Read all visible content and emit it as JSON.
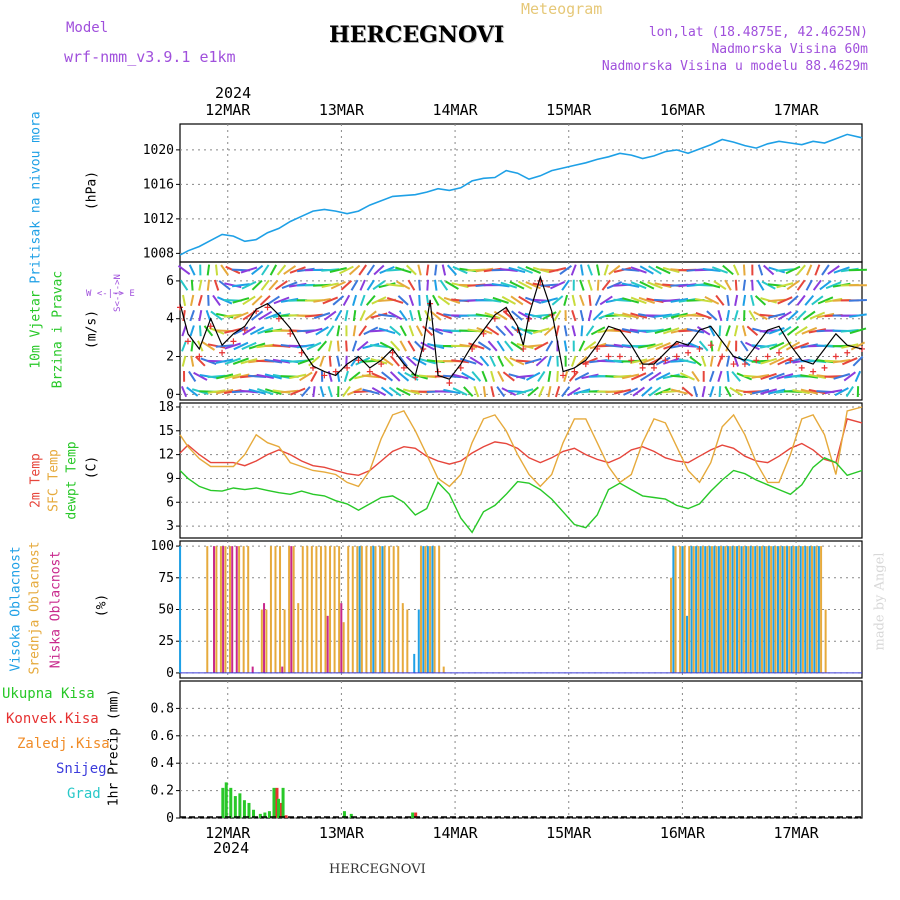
{
  "header": {
    "model_label": "Model",
    "model_name": "wrf-nmm_v3.9.1 e1km",
    "station": "HERCEGNOVI",
    "product": "Meteogram",
    "coords": "lon,lat (18.4875E, 42.4625N)",
    "altitude": "Nadmorska Visina 60m",
    "model_altitude": "Nadmorska Visina u modelu 88.4629m"
  },
  "footer": {
    "station": "HERCEGNOVI",
    "credit": "made by Angel"
  },
  "colors": {
    "pressure": "#1ea0e6",
    "wind_speed": "#000000",
    "gust": "#e63232",
    "t2m": "#e6463c",
    "sfc": "#e6aa3c",
    "dewpt": "#28c828",
    "cloud_high": "#1ea0e6",
    "cloud_mid": "#e6aa3c",
    "cloud_low": "#c8288c",
    "precip_total": "#28c828",
    "precip_conv": "#e63232",
    "precip_frz": "#f08c28",
    "snow": "#3c3cdc",
    "graupel": "#28c8c8",
    "grid": "#888888"
  },
  "chart_data": [
    {
      "type": "line",
      "id": "pressure",
      "ylabel_rot": "Pritisak na nivou mora",
      "unit": "(hPa)",
      "ylim": [
        1007,
        1023
      ],
      "yticks": [
        1008,
        1012,
        1016,
        1020
      ],
      "x_start_day": 11.58,
      "x_end_day": 17.58,
      "x_tick_days": [
        12,
        13,
        14,
        15,
        16,
        17
      ],
      "x_tick_labels": [
        "12MAR",
        "13MAR",
        "14MAR",
        "15MAR",
        "16MAR",
        "17MAR"
      ],
      "year_label": "2024",
      "grid": true,
      "x": [
        11.58,
        11.65,
        11.75,
        11.85,
        11.95,
        12.05,
        12.15,
        12.25,
        12.35,
        12.45,
        12.55,
        12.65,
        12.75,
        12.85,
        12.95,
        13.05,
        13.15,
        13.25,
        13.35,
        13.45,
        13.55,
        13.65,
        13.75,
        13.85,
        13.95,
        14.05,
        14.15,
        14.25,
        14.35,
        14.45,
        14.55,
        14.65,
        14.75,
        14.85,
        14.95,
        15.05,
        15.15,
        15.25,
        15.35,
        15.45,
        15.55,
        15.65,
        15.75,
        15.85,
        15.95,
        16.05,
        16.15,
        16.25,
        16.35,
        16.45,
        16.55,
        16.65,
        16.75,
        16.85,
        16.95,
        17.05,
        17.15,
        17.25,
        17.35,
        17.45,
        17.58
      ],
      "values": [
        1007.8,
        1008.3,
        1008.8,
        1009.5,
        1010.2,
        1010.0,
        1009.4,
        1009.6,
        1010.4,
        1010.9,
        1011.7,
        1012.3,
        1012.9,
        1013.1,
        1012.9,
        1012.6,
        1012.9,
        1013.6,
        1014.1,
        1014.6,
        1014.7,
        1014.8,
        1015.1,
        1015.5,
        1015.3,
        1015.6,
        1016.4,
        1016.7,
        1016.8,
        1017.6,
        1017.3,
        1016.6,
        1017.0,
        1017.6,
        1017.9,
        1018.2,
        1018.5,
        1018.9,
        1019.2,
        1019.6,
        1019.4,
        1019.0,
        1019.3,
        1019.8,
        1020.0,
        1019.6,
        1020.1,
        1020.6,
        1021.2,
        1020.9,
        1020.5,
        1020.2,
        1020.7,
        1021.0,
        1020.8,
        1020.6,
        1021.0,
        1020.8,
        1021.3,
        1021.8,
        1021.4
      ]
    },
    {
      "type": "line",
      "id": "wind",
      "ylabel_rot": "10m Vjetar",
      "ylabel_rot2": "Brzina i Pravac",
      "unit": "(m/s)",
      "compass": "W <-|-> E",
      "compass_ns": "S<-|->N",
      "ylim": [
        -0.3,
        7.0
      ],
      "yticks": [
        0,
        2,
        4,
        6
      ],
      "grid": true,
      "x": [
        11.58,
        11.65,
        11.75,
        11.85,
        11.95,
        12.05,
        12.15,
        12.25,
        12.35,
        12.45,
        12.55,
        12.65,
        12.75,
        12.85,
        12.95,
        13.05,
        13.15,
        13.25,
        13.35,
        13.45,
        13.55,
        13.65,
        13.72,
        13.78,
        13.85,
        13.95,
        14.05,
        14.15,
        14.25,
        14.35,
        14.45,
        14.55,
        14.6,
        14.65,
        14.75,
        14.85,
        14.95,
        15.05,
        15.15,
        15.25,
        15.35,
        15.45,
        15.55,
        15.65,
        15.75,
        15.85,
        15.95,
        16.05,
        16.15,
        16.25,
        16.35,
        16.45,
        16.55,
        16.65,
        16.75,
        16.85,
        16.95,
        17.05,
        17.15,
        17.25,
        17.35,
        17.45,
        17.58
      ],
      "values": [
        4.8,
        3.2,
        2.4,
        4.0,
        2.6,
        3.2,
        3.6,
        4.5,
        4.8,
        4.2,
        3.5,
        2.4,
        1.5,
        1.2,
        1.0,
        1.6,
        2.0,
        1.4,
        1.8,
        2.4,
        1.6,
        1.0,
        2.6,
        5.0,
        1.0,
        0.8,
        1.6,
        2.6,
        3.4,
        4.2,
        4.6,
        3.6,
        2.6,
        4.2,
        6.2,
        4.4,
        1.2,
        1.4,
        1.8,
        2.6,
        3.6,
        3.4,
        2.6,
        1.6,
        1.6,
        2.2,
        2.8,
        2.6,
        3.4,
        3.6,
        2.8,
        2.0,
        1.8,
        2.6,
        3.4,
        3.6,
        2.6,
        1.8,
        1.6,
        2.4,
        3.2,
        2.6,
        2.4
      ],
      "gust_values": [
        4.6,
        2.8,
        2.0,
        3.6,
        2.2,
        2.8,
        3.4,
        4.4,
        4.6,
        4.0,
        3.2,
        2.2,
        1.4,
        1.0,
        1.2,
        1.4,
        1.8,
        1.2,
        1.6,
        2.2,
        1.4,
        0.9,
        2.4,
        4.8,
        1.2,
        0.6,
        1.4,
        2.4,
        3.2,
        4.0,
        4.4,
        3.4,
        2.4,
        4.0,
        6.0,
        4.2,
        1.0,
        1.2,
        1.6,
        2.4,
        2.0,
        2.0,
        1.8,
        1.4,
        1.4,
        1.8,
        2.0,
        2.2,
        2.4,
        2.6,
        2.0,
        1.6,
        1.6,
        1.8,
        2.0,
        2.2,
        1.8,
        1.4,
        1.2,
        1.4,
        2.0,
        2.2,
        2.4
      ]
    },
    {
      "type": "line",
      "id": "temperature",
      "ylabel_rot": "2m Temp",
      "ylabel_rot2": "SFC Temp",
      "ylabel_rot3": "dewpt Temp",
      "unit": "(C)",
      "ylim": [
        1.5,
        18.5
      ],
      "yticks": [
        3,
        6,
        9,
        12,
        15,
        18
      ],
      "grid": true,
      "x": [
        11.58,
        11.65,
        11.75,
        11.85,
        11.95,
        12.05,
        12.15,
        12.25,
        12.35,
        12.45,
        12.55,
        12.65,
        12.75,
        12.85,
        12.95,
        13.05,
        13.15,
        13.25,
        13.35,
        13.45,
        13.55,
        13.65,
        13.75,
        13.85,
        13.95,
        14.05,
        14.15,
        14.25,
        14.35,
        14.45,
        14.55,
        14.65,
        14.75,
        14.85,
        14.95,
        15.05,
        15.15,
        15.25,
        15.35,
        15.45,
        15.55,
        15.65,
        15.75,
        15.85,
        15.95,
        16.05,
        16.15,
        16.25,
        16.35,
        16.45,
        16.55,
        16.65,
        16.75,
        16.85,
        16.95,
        17.05,
        17.15,
        17.25,
        17.35,
        17.45,
        17.58
      ],
      "series": [
        {
          "name": "2m Temp",
          "values": [
            12.2,
            13.2,
            12.0,
            11.0,
            11.0,
            11.0,
            10.6,
            11.2,
            12.0,
            12.6,
            12.0,
            11.2,
            10.6,
            10.4,
            10.0,
            9.6,
            9.4,
            10.0,
            11.2,
            12.4,
            13.0,
            12.8,
            11.8,
            11.2,
            10.8,
            11.2,
            12.2,
            13.0,
            13.6,
            13.4,
            12.8,
            11.6,
            11.0,
            11.6,
            12.4,
            12.8,
            12.0,
            11.4,
            11.0,
            11.6,
            12.6,
            13.0,
            12.4,
            11.6,
            11.2,
            11.0,
            11.8,
            12.6,
            13.2,
            12.8,
            11.8,
            11.2,
            11.0,
            11.8,
            12.8,
            13.4,
            12.6,
            11.4,
            11.0,
            16.5,
            16.0
          ]
        },
        {
          "name": "SFC Temp",
          "values": [
            14.5,
            13.0,
            11.5,
            10.5,
            10.5,
            10.5,
            12.0,
            14.5,
            13.5,
            13.0,
            11.0,
            10.5,
            10.0,
            9.8,
            9.5,
            8.5,
            8.0,
            10.0,
            14.0,
            17.0,
            17.5,
            15.0,
            12.0,
            9.0,
            8.0,
            9.5,
            13.5,
            16.5,
            17.0,
            15.0,
            12.0,
            9.5,
            8.0,
            9.5,
            13.5,
            16.5,
            16.5,
            13.5,
            10.5,
            8.5,
            9.5,
            13.5,
            16.5,
            16.0,
            13.0,
            10.0,
            8.5,
            11.0,
            15.5,
            17.0,
            14.5,
            11.0,
            8.5,
            8.5,
            12.0,
            16.5,
            17.0,
            14.5,
            9.5,
            17.5,
            18.0
          ]
        },
        {
          "name": "dewpt Temp",
          "values": [
            10.0,
            9.0,
            8.0,
            7.5,
            7.4,
            7.8,
            7.6,
            7.8,
            7.5,
            7.2,
            7.0,
            7.4,
            7.0,
            6.8,
            6.2,
            5.8,
            5.0,
            5.8,
            6.6,
            6.8,
            6.0,
            4.4,
            5.2,
            8.5,
            7.0,
            4.0,
            2.2,
            4.8,
            5.6,
            7.0,
            8.6,
            8.4,
            7.6,
            6.4,
            4.8,
            3.2,
            2.8,
            4.4,
            7.6,
            8.4,
            7.6,
            6.8,
            6.6,
            6.4,
            5.6,
            5.2,
            5.8,
            7.4,
            8.8,
            10.0,
            9.6,
            8.8,
            8.2,
            7.6,
            7.0,
            8.2,
            10.4,
            11.6,
            11.0,
            9.4,
            10.0
          ]
        }
      ]
    },
    {
      "type": "bar",
      "id": "cloud",
      "ylabel_rot": "Visoka Oblacnost",
      "ylabel_rot2": "Srednja Oblacnost",
      "ylabel_rot3": "Niska Oblacnost",
      "unit": "(%)",
      "ylim": [
        -4,
        104
      ],
      "yticks": [
        0,
        25,
        50,
        75,
        100
      ],
      "grid": true,
      "x": [
        11.6,
        11.62,
        11.82,
        11.86,
        11.9,
        11.94,
        11.98,
        12.02,
        12.06,
        12.1,
        12.14,
        12.18,
        12.2,
        12.3,
        12.34,
        12.38,
        12.42,
        12.46,
        12.5,
        12.54,
        12.58,
        12.62,
        12.66,
        12.7,
        12.74,
        12.78,
        12.82,
        12.86,
        12.9,
        12.94,
        12.98,
        13.02,
        13.06,
        13.1,
        13.14,
        13.18,
        13.22,
        13.26,
        13.3,
        13.34,
        13.38,
        13.42,
        13.46,
        13.5,
        13.54,
        13.58,
        13.62,
        13.66,
        13.7,
        13.74,
        13.78,
        13.82,
        13.86,
        13.9,
        15.9,
        15.94,
        15.98,
        16.02,
        16.06,
        16.1,
        16.14,
        16.18,
        16.22,
        16.26,
        16.3,
        16.34,
        16.38,
        16.42,
        16.46,
        16.5,
        16.54,
        16.58,
        16.62,
        16.66,
        16.7,
        16.74,
        16.78,
        16.82,
        16.86,
        16.9,
        16.94,
        16.98,
        17.02,
        17.06,
        17.1,
        17.14,
        17.18,
        17.22,
        17.26
      ],
      "series": [
        {
          "name": "Visoka Oblacnost",
          "values": [
            100,
            0,
            0,
            0,
            0,
            0,
            0,
            0,
            0,
            0,
            0,
            0,
            0,
            0,
            0,
            0,
            0,
            0,
            0,
            0,
            0,
            0,
            0,
            0,
            0,
            0,
            0,
            0,
            0,
            0,
            0,
            0,
            0,
            0,
            0,
            100,
            0,
            0,
            100,
            0,
            100,
            0,
            0,
            0,
            0,
            0,
            0,
            15,
            50,
            100,
            100,
            100,
            0,
            0,
            0,
            100,
            0,
            100,
            45,
            100,
            100,
            100,
            100,
            100,
            100,
            100,
            100,
            100,
            100,
            100,
            100,
            100,
            100,
            100,
            100,
            100,
            100,
            100,
            100,
            100,
            100,
            100,
            100,
            100,
            100,
            100,
            100,
            100,
            0
          ]
        },
        {
          "name": "Srednja Oblacnost",
          "values": [
            0,
            0,
            100,
            0,
            100,
            100,
            100,
            100,
            0,
            100,
            100,
            100,
            0,
            50,
            50,
            100,
            100,
            100,
            50,
            100,
            100,
            55,
            100,
            100,
            100,
            100,
            100,
            100,
            100,
            100,
            100,
            40,
            100,
            100,
            100,
            100,
            100,
            100,
            100,
            100,
            100,
            100,
            100,
            100,
            55,
            50,
            0,
            0,
            100,
            100,
            100,
            100,
            100,
            5,
            75,
            100,
            100,
            100,
            100,
            100,
            100,
            100,
            100,
            100,
            100,
            100,
            100,
            100,
            100,
            100,
            100,
            100,
            100,
            100,
            100,
            100,
            100,
            100,
            100,
            100,
            100,
            100,
            100,
            100,
            100,
            100,
            100,
            100,
            50
          ]
        },
        {
          "name": "Niska Oblacnost",
          "values": [
            0,
            0,
            0,
            100,
            0,
            100,
            0,
            100,
            100,
            0,
            0,
            0,
            5,
            55,
            0,
            0,
            0,
            5,
            0,
            100,
            0,
            0,
            0,
            0,
            0,
            0,
            0,
            45,
            0,
            0,
            55,
            0,
            0,
            0,
            0,
            0,
            0,
            0,
            0,
            0,
            0,
            0,
            0,
            0,
            0,
            0,
            0,
            0,
            0,
            0,
            0,
            0,
            0,
            0,
            0,
            0,
            0,
            0,
            0,
            0,
            0,
            0,
            0,
            0,
            0,
            0,
            0,
            0,
            0,
            0,
            0,
            0,
            0,
            0,
            0,
            0,
            0,
            0,
            0,
            0,
            0,
            0,
            0,
            0,
            0,
            0,
            0,
            0,
            0
          ]
        }
      ]
    },
    {
      "type": "bar",
      "id": "precip",
      "ylabel_rot": "1hr Precip (mm)",
      "legend": [
        "Ukupna Kisa",
        "Konvek.Kisa",
        "Zaledj.Kisa",
        "Snijeg",
        "Grad"
      ],
      "ylim": [
        0,
        1.0
      ],
      "yticks": [
        0,
        0.2,
        0.4,
        0.6,
        0.8
      ],
      "ytick_labels": [
        "0",
        "0.2",
        "0.4",
        "0.6",
        "0.8"
      ],
      "grid": true,
      "x": [
        11.97,
        12.0,
        12.04,
        12.08,
        12.12,
        12.16,
        12.2,
        12.24,
        12.3,
        12.34,
        12.38,
        12.42,
        12.46,
        12.5,
        12.54,
        12.58,
        13.04,
        13.1,
        13.64
      ],
      "series": [
        {
          "name": "Ukupna Kisa",
          "values": [
            0.22,
            0.26,
            0.22,
            0.16,
            0.18,
            0.13,
            0.11,
            0.06,
            0.03,
            0.04,
            0.05,
            0.22,
            0.14,
            0.22,
            0.0,
            0.0,
            0.05,
            0.03,
            0.04
          ]
        },
        {
          "name": "Konvek.Kisa",
          "values": [
            0.0,
            0.0,
            0.0,
            0.0,
            0.0,
            0.0,
            0.0,
            0.0,
            0.0,
            0.0,
            0.0,
            0.22,
            0.11,
            0.02,
            0.0,
            0.0,
            0.0,
            0.0,
            0.04
          ]
        }
      ]
    }
  ]
}
